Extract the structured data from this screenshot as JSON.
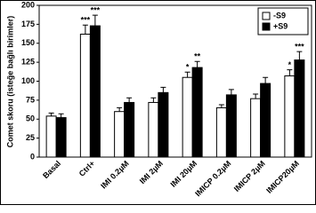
{
  "chart_data": {
    "type": "bar",
    "y_label": "Comet skoru (isteğe bağlı birimler)",
    "categories": [
      "Basal",
      "Ctrl+",
      "IMI 0.2µM",
      "IMI 2µM",
      "IMI 20µM",
      "IMICP 0.2µM",
      "IMICP 2µM",
      "IMICP20µM"
    ],
    "series": [
      {
        "name": "-S9",
        "color": "#ffffff",
        "values": [
          54,
          162,
          60,
          72,
          105,
          65,
          77,
          107
        ],
        "errors": [
          4,
          12,
          5,
          6,
          7,
          4,
          6,
          8
        ],
        "significance": [
          null,
          "***",
          null,
          null,
          "*",
          null,
          null,
          "*"
        ]
      },
      {
        "name": "+S9",
        "color": "#000000",
        "values": [
          52,
          173,
          72,
          85,
          118,
          82,
          97,
          128
        ],
        "errors": [
          5,
          14,
          6,
          7,
          8,
          7,
          8,
          11
        ],
        "significance": [
          null,
          "***",
          null,
          null,
          "**",
          null,
          null,
          "***"
        ]
      }
    ],
    "ylim": [
      0,
      200
    ],
    "yticks": [
      0,
      25,
      50,
      75,
      100,
      125,
      150,
      175,
      200
    ],
    "legend": "top-right"
  }
}
